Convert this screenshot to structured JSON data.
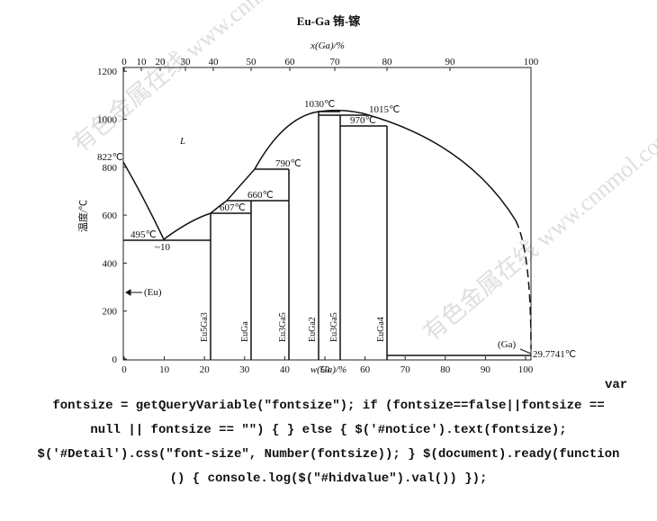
{
  "diagram": {
    "title": "Eu-Ga  铕-镓",
    "top_axis_label": "x(Ga)/%",
    "top_ticks": [
      "0",
      "10",
      "20",
      "30",
      "40",
      "50",
      "60",
      "70",
      "80",
      "90",
      "100"
    ],
    "left_axis_label": "温度/℃",
    "left_ticks": [
      "0",
      "200",
      "400",
      "600",
      "800",
      "1000",
      "1200"
    ],
    "bottom_ticks": [
      "0",
      "10",
      "20",
      "30",
      "40",
      "50",
      "60",
      "70",
      "80",
      "90",
      "100"
    ],
    "bottom_axis_label": "w(Ga)/%",
    "left_element": "Eu",
    "right_element": "Ga",
    "region_labels": [
      "L",
      "(Eu)",
      "(Ga)"
    ],
    "temperature_labels": [
      "822℃",
      "495℃",
      "~10",
      "607℃",
      "660℃",
      "790℃",
      "1030℃",
      "1015℃",
      "970℃",
      "29.7741℃"
    ],
    "phase_labels": [
      "Eu5Ga3",
      "EuGa",
      "Eu3Ga5",
      "EuGa2",
      "Eu3Ga5",
      "EuGa4"
    ],
    "watermarks": [
      "有色金属在线 www.cnnmol.com",
      "有色金属在线 www.cnnmol.com"
    ]
  },
  "code_lines": [
    "var",
    "fontsize = getQueryVariable(\"fontsize\"); if (fontsize==false||fontsize ==",
    "null || fontsize == \"\") { } else { $('#notice').text(fontsize);",
    "$('#Detail').css(\"font-size\", Number(fontsize)); } $(document).ready(function",
    "() { console.log($(\"#hidvalue\").val()) });"
  ]
}
